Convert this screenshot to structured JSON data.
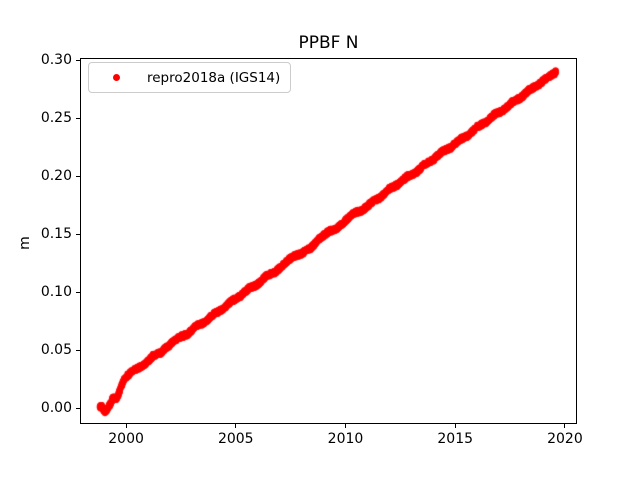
{
  "figure": {
    "background": "#ffffff",
    "spine_color": "#000000",
    "text_color": "#000000",
    "legend_border_color": "#cccccc"
  },
  "chart_data": {
    "type": "scatter",
    "title": "PPBF N",
    "xlabel": "",
    "ylabel": "m",
    "xlim": [
      1997.9,
      2020.55
    ],
    "ylim": [
      -0.0138,
      0.3021
    ],
    "xticks": [
      2000,
      2005,
      2010,
      2015,
      2020
    ],
    "yticks": [
      0.0,
      0.05,
      0.1,
      0.15,
      0.2,
      0.25,
      0.3
    ],
    "grid": false,
    "legend": {
      "label": "repro2018a (IGS14)",
      "marker_color": "#ff0000",
      "position": "upper left"
    },
    "series": [
      {
        "name": "repro2018a (IGS14)",
        "color": "#ff0000",
        "marker": "dot",
        "marker_px": 3.1,
        "sample_step_years": 0.0095,
        "jitter": 0.0017,
        "anchors": [
          [
            1998.8,
            0.0005
          ],
          [
            1998.88,
            0.002
          ],
          [
            1998.96,
            -0.001
          ],
          [
            1999.04,
            -0.003
          ],
          [
            1999.12,
            -0.0015
          ],
          [
            1999.2,
            0.001
          ],
          [
            1999.28,
            0.003
          ],
          [
            1999.36,
            0.007
          ],
          [
            1999.44,
            0.01
          ],
          [
            1999.52,
            0.0075
          ],
          [
            1999.6,
            0.009
          ],
          [
            1999.7,
            0.014
          ],
          [
            1999.8,
            0.0195
          ],
          [
            1999.9,
            0.0245
          ],
          [
            2000.0,
            0.027
          ],
          [
            2000.4,
            0.0334
          ],
          [
            2000.8,
            0.0367
          ],
          [
            2001.2,
            0.0446
          ],
          [
            2001.6,
            0.048
          ],
          [
            2002.0,
            0.0548
          ],
          [
            2002.4,
            0.0612
          ],
          [
            2002.8,
            0.0636
          ],
          [
            2003.2,
            0.071
          ],
          [
            2003.6,
            0.0738
          ],
          [
            2004.0,
            0.0812
          ],
          [
            2004.4,
            0.0851
          ],
          [
            2004.8,
            0.0924
          ],
          [
            2005.2,
            0.0963
          ],
          [
            2005.6,
            0.1034
          ],
          [
            2006.0,
            0.1067
          ],
          [
            2006.4,
            0.1144
          ],
          [
            2006.8,
            0.1171
          ],
          [
            2007.2,
            0.1244
          ],
          [
            2007.6,
            0.1308
          ],
          [
            2008.0,
            0.1334
          ],
          [
            2008.4,
            0.1379
          ],
          [
            2008.8,
            0.1459
          ],
          [
            2009.2,
            0.152
          ],
          [
            2009.6,
            0.1549
          ],
          [
            2010.0,
            0.1617
          ],
          [
            2010.4,
            0.1684
          ],
          [
            2010.8,
            0.1708
          ],
          [
            2011.2,
            0.1779
          ],
          [
            2011.6,
            0.1817
          ],
          [
            2012.0,
            0.1893
          ],
          [
            2012.4,
            0.1928
          ],
          [
            2012.8,
            0.1998
          ],
          [
            2013.2,
            0.203
          ],
          [
            2013.6,
            0.2103
          ],
          [
            2014.0,
            0.2143
          ],
          [
            2014.4,
            0.2215
          ],
          [
            2014.8,
            0.2247
          ],
          [
            2015.2,
            0.2318
          ],
          [
            2015.6,
            0.2352
          ],
          [
            2016.0,
            0.2428
          ],
          [
            2016.4,
            0.2465
          ],
          [
            2016.8,
            0.2537
          ],
          [
            2017.2,
            0.2569
          ],
          [
            2017.6,
            0.264
          ],
          [
            2018.0,
            0.2678
          ],
          [
            2018.4,
            0.275
          ],
          [
            2018.8,
            0.2788
          ],
          [
            2019.2,
            0.2855
          ],
          [
            2019.45,
            0.2881
          ],
          [
            2019.6,
            0.29
          ]
        ]
      }
    ]
  }
}
